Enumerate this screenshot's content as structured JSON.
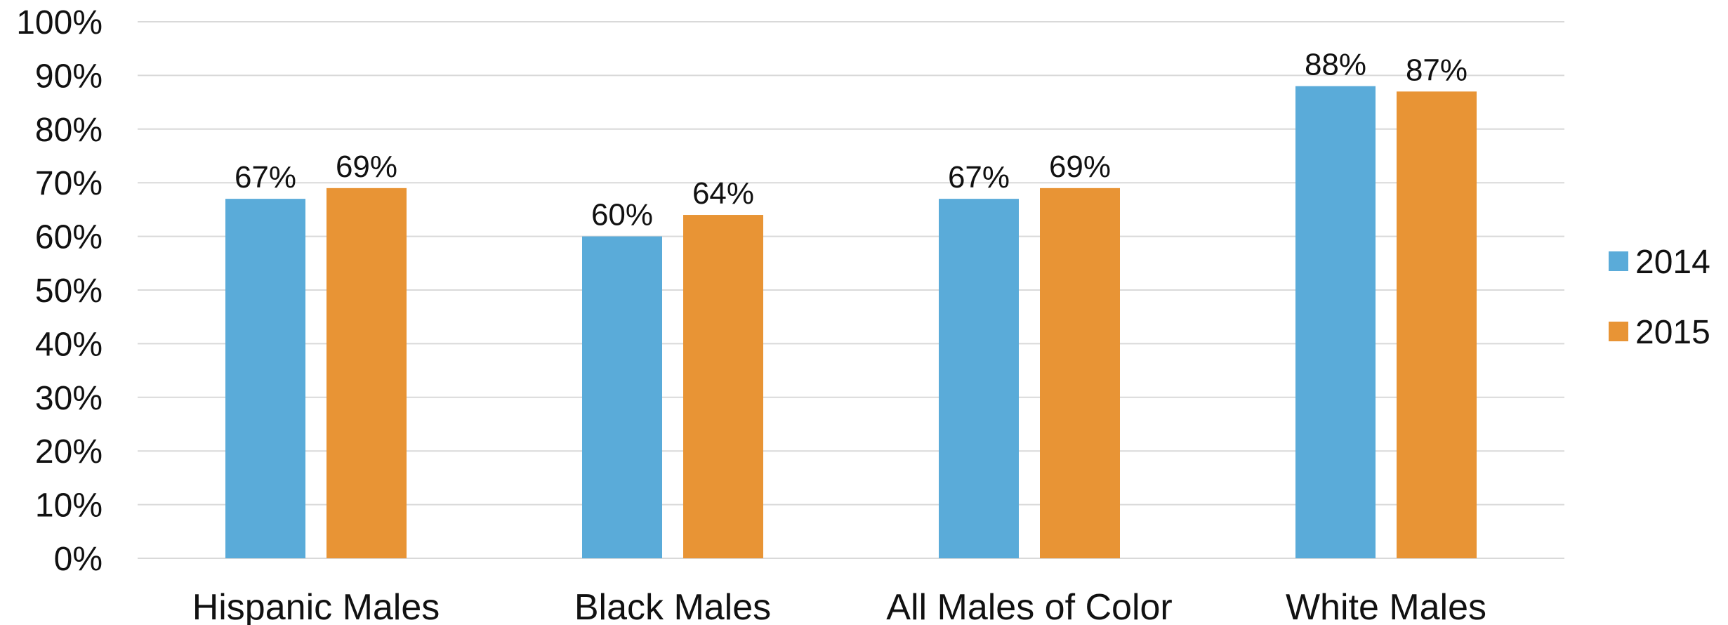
{
  "chart_data": {
    "type": "bar",
    "title": "",
    "xlabel": "",
    "ylabel": "",
    "categories": [
      "Hispanic Males",
      "Black Males",
      "All Males of Color",
      "White Males"
    ],
    "series": [
      {
        "name": "2014",
        "color": "#5aabd9",
        "values": [
          67,
          60,
          67,
          88
        ],
        "labels": [
          "67%",
          "60%",
          "67%",
          "88%"
        ]
      },
      {
        "name": "2015",
        "color": "#e89435",
        "values": [
          69,
          64,
          69,
          87
        ],
        "labels": [
          "69%",
          "64%",
          "69%",
          "87%"
        ]
      }
    ],
    "ylim": [
      0,
      100
    ],
    "yticks": [
      "0%",
      "10%",
      "20%",
      "30%",
      "40%",
      "50%",
      "60%",
      "70%",
      "80%",
      "90%",
      "100%"
    ],
    "grid": true,
    "legend": "right"
  }
}
